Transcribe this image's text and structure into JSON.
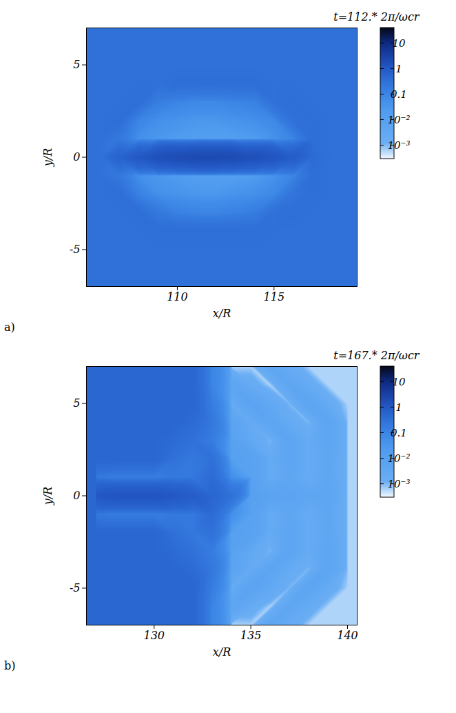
{
  "chart_data": [
    {
      "type": "heatmap",
      "title": "t=112.* 2π/ωcr",
      "panel_label": "a)",
      "x_label": "x/R",
      "y_label": "y/R",
      "xlim": [
        105.3,
        119.3
      ],
      "xticks": [
        110,
        115
      ],
      "ylim": [
        -7,
        7
      ],
      "yticks": [
        -5,
        0,
        5
      ],
      "x": [
        105,
        106,
        107,
        108,
        109,
        110,
        111,
        112,
        113,
        114,
        115,
        116,
        117,
        118,
        119
      ],
      "y": [
        7,
        6,
        5,
        4,
        3,
        2,
        1,
        0,
        -1,
        -2,
        -3,
        -4,
        -5,
        -6,
        -7
      ],
      "values": [
        [
          0.3,
          0.3,
          0.3,
          0.3,
          0.3,
          0.3,
          0.3,
          0.3,
          0.3,
          0.3,
          0.3,
          0.3,
          0.3,
          0.3,
          0.3
        ],
        [
          0.3,
          0.3,
          0.3,
          0.3,
          0.3,
          0.3,
          0.3,
          0.3,
          0.3,
          0.3,
          0.3,
          0.3,
          0.3,
          0.3,
          0.3
        ],
        [
          0.3,
          0.3,
          0.3,
          0.3,
          0.3,
          0.3,
          0.3,
          0.3,
          0.3,
          0.3,
          0.3,
          0.3,
          0.3,
          0.3,
          0.3
        ],
        [
          0.3,
          0.3,
          0.3,
          0.3,
          0.3,
          0.35,
          0.35,
          0.35,
          0.35,
          0.35,
          0.3,
          0.3,
          0.3,
          0.3,
          0.3
        ],
        [
          0.3,
          0.3,
          0.3,
          0.35,
          0.15,
          0.1,
          0.08,
          0.08,
          0.1,
          0.12,
          0.3,
          0.35,
          0.3,
          0.3,
          0.3
        ],
        [
          0.3,
          0.3,
          0.35,
          0.1,
          0.05,
          0.04,
          0.03,
          0.03,
          0.04,
          0.05,
          0.08,
          0.3,
          0.35,
          0.3,
          0.3
        ],
        [
          0.3,
          0.3,
          0.2,
          0.05,
          0.03,
          0.02,
          0.015,
          0.012,
          0.015,
          0.02,
          0.04,
          0.1,
          0.35,
          0.3,
          0.3
        ],
        [
          0.3,
          0.3,
          0.6,
          1,
          1.5,
          1.8,
          2,
          2,
          1.8,
          1.5,
          1.2,
          0.8,
          0.4,
          0.3,
          0.3
        ],
        [
          0.3,
          0.3,
          0.2,
          0.05,
          0.03,
          0.02,
          0.015,
          0.012,
          0.015,
          0.02,
          0.04,
          0.1,
          0.35,
          0.3,
          0.3
        ],
        [
          0.3,
          0.3,
          0.35,
          0.12,
          0.05,
          0.04,
          0.03,
          0.03,
          0.04,
          0.05,
          0.08,
          0.25,
          0.35,
          0.3,
          0.3
        ],
        [
          0.3,
          0.3,
          0.3,
          0.35,
          0.2,
          0.12,
          0.1,
          0.1,
          0.12,
          0.15,
          0.3,
          0.35,
          0.3,
          0.3,
          0.3
        ],
        [
          0.3,
          0.3,
          0.3,
          0.3,
          0.35,
          0.35,
          0.35,
          0.35,
          0.35,
          0.35,
          0.3,
          0.3,
          0.3,
          0.3,
          0.3
        ],
        [
          0.3,
          0.3,
          0.3,
          0.3,
          0.3,
          0.3,
          0.3,
          0.3,
          0.3,
          0.3,
          0.3,
          0.3,
          0.3,
          0.3,
          0.3
        ],
        [
          0.3,
          0.3,
          0.3,
          0.3,
          0.3,
          0.3,
          0.3,
          0.3,
          0.3,
          0.3,
          0.3,
          0.3,
          0.3,
          0.3,
          0.3
        ],
        [
          0.3,
          0.3,
          0.3,
          0.3,
          0.3,
          0.3,
          0.3,
          0.3,
          0.3,
          0.3,
          0.3,
          0.3,
          0.3,
          0.3,
          0.3
        ]
      ],
      "colorbar": {
        "log": true,
        "range": [
          0.0003,
          40
        ],
        "ticks": [
          {
            "value": 0.001,
            "label": "10⁻³"
          },
          {
            "value": 0.01,
            "label": "10⁻²"
          },
          0.1,
          1,
          10
        ]
      }
    },
    {
      "type": "heatmap",
      "title": "t=167.* 2π/ωcr",
      "panel_label": "b)",
      "x_label": "x/R",
      "y_label": "y/R",
      "xlim": [
        126.5,
        140.5
      ],
      "xticks": [
        130,
        135,
        140
      ],
      "ylim": [
        -7,
        7
      ],
      "yticks": [
        -5,
        0,
        5
      ],
      "x": [
        127,
        128,
        129,
        130,
        131,
        132,
        133,
        134,
        135,
        136,
        137,
        138,
        139,
        140
      ],
      "y": [
        7,
        6,
        5,
        4,
        3,
        2,
        1,
        0,
        -1,
        -2,
        -3,
        -4,
        -5,
        -6,
        -7
      ],
      "values": [
        [
          0.5,
          0.5,
          0.5,
          0.5,
          0.5,
          0.5,
          0.1,
          0.0006,
          0.0006,
          0.004,
          0.002,
          0.0006,
          0.0006,
          0.0006
        ],
        [
          0.5,
          0.5,
          0.5,
          0.5,
          0.5,
          0.5,
          0.1,
          0.005,
          0.002,
          0.0006,
          0.004,
          0.002,
          0.0006,
          0.0006
        ],
        [
          0.5,
          0.5,
          0.5,
          0.5,
          0.5,
          0.5,
          0.15,
          0.002,
          0.006,
          0.003,
          0.001,
          0.005,
          0.002,
          0.0006
        ],
        [
          0.5,
          0.5,
          0.5,
          0.5,
          0.5,
          0.4,
          0.2,
          0.006,
          0.002,
          0.005,
          0.002,
          0.001,
          0.005,
          0.001
        ],
        [
          0.5,
          0.5,
          0.5,
          0.5,
          0.4,
          0.3,
          0.15,
          0.008,
          0.003,
          0.001,
          0.005,
          0.002,
          0.005,
          0.001
        ],
        [
          0.5,
          0.5,
          0.5,
          0.5,
          0.3,
          0.2,
          0.3,
          0.01,
          0.008,
          0.002,
          0.005,
          0.002,
          0.004,
          0.001
        ],
        [
          0.2,
          0.15,
          0.15,
          0.15,
          0.2,
          0.2,
          0.4,
          0.05,
          0.008,
          0.002,
          0.004,
          0.002,
          0.004,
          0.001
        ],
        [
          1,
          1.2,
          1.2,
          1.2,
          1,
          0.8,
          0.5,
          0.3,
          0.01,
          0.006,
          0.006,
          0.004,
          0.005,
          0.001
        ],
        [
          0.2,
          0.15,
          0.15,
          0.15,
          0.2,
          0.2,
          0.4,
          0.05,
          0.008,
          0.002,
          0.004,
          0.002,
          0.004,
          0.001
        ],
        [
          0.5,
          0.5,
          0.5,
          0.5,
          0.3,
          0.2,
          0.3,
          0.01,
          0.008,
          0.002,
          0.005,
          0.002,
          0.004,
          0.001
        ],
        [
          0.5,
          0.5,
          0.5,
          0.5,
          0.4,
          0.3,
          0.15,
          0.008,
          0.003,
          0.001,
          0.005,
          0.002,
          0.005,
          0.001
        ],
        [
          0.5,
          0.5,
          0.5,
          0.5,
          0.5,
          0.4,
          0.2,
          0.006,
          0.002,
          0.005,
          0.002,
          0.001,
          0.005,
          0.001
        ],
        [
          0.5,
          0.5,
          0.5,
          0.5,
          0.5,
          0.5,
          0.15,
          0.002,
          0.006,
          0.003,
          0.001,
          0.005,
          0.002,
          0.0006
        ],
        [
          0.5,
          0.5,
          0.5,
          0.5,
          0.5,
          0.5,
          0.1,
          0.005,
          0.002,
          0.0006,
          0.004,
          0.002,
          0.0006,
          0.0006
        ],
        [
          0.5,
          0.5,
          0.5,
          0.5,
          0.5,
          0.5,
          0.1,
          0.0006,
          0.0006,
          0.004,
          0.002,
          0.0006,
          0.0006,
          0.0006
        ]
      ],
      "colorbar": {
        "log": true,
        "range": [
          0.0003,
          40
        ],
        "ticks": [
          {
            "value": 0.001,
            "label": "10⁻³"
          },
          {
            "value": 0.01,
            "label": "10⁻²"
          },
          0.1,
          1,
          10
        ]
      }
    }
  ]
}
